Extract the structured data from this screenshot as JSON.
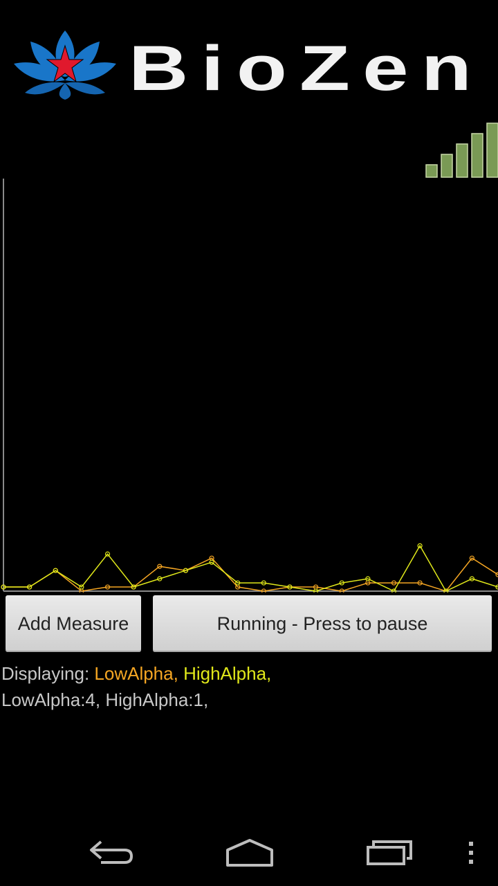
{
  "app": {
    "logo_text": "BioZen"
  },
  "colors": {
    "low_alpha": "#f5a623",
    "high_alpha": "#e0e81a",
    "logo_blue": "#1976c9",
    "logo_star": "#e0192d",
    "signal_green": "#7a9a55"
  },
  "signal": {
    "icon": "signal-strength-icon",
    "bars_total": 5,
    "bars_active": 5
  },
  "buttons": {
    "add_measure": "Add Measure",
    "run_toggle": "Running - Press to pause"
  },
  "status": {
    "displaying_prefix": "Displaying: ",
    "series_labels": [
      "LowAlpha,",
      "HighAlpha,"
    ],
    "values_text": "LowAlpha:4, HighAlpha:1,"
  },
  "chart_data": {
    "type": "line",
    "xlabel": "",
    "ylabel": "",
    "ylim": [
      0,
      100
    ],
    "grid": false,
    "x": [
      0,
      1,
      2,
      3,
      4,
      5,
      6,
      7,
      8,
      9,
      10,
      11,
      12,
      13,
      14,
      15,
      16,
      17,
      18,
      19
    ],
    "series": [
      {
        "color": "#f5a623",
        "values": [
          1,
          1,
          5,
          0,
          1,
          1,
          6,
          5,
          8,
          1,
          0,
          1,
          1,
          0,
          2,
          2,
          2,
          0,
          8,
          4
        ]
      },
      {
        "color": "#e0e81a",
        "values": [
          1,
          1,
          5,
          1,
          9,
          1,
          3,
          5,
          7,
          2,
          2,
          1,
          0,
          2,
          3,
          0,
          11,
          0,
          3,
          1
        ]
      }
    ]
  },
  "navbar": {
    "back_icon": "back-icon",
    "home_icon": "home-icon",
    "recents_icon": "recent-apps-icon",
    "menu_icon": "overflow-menu-icon"
  }
}
